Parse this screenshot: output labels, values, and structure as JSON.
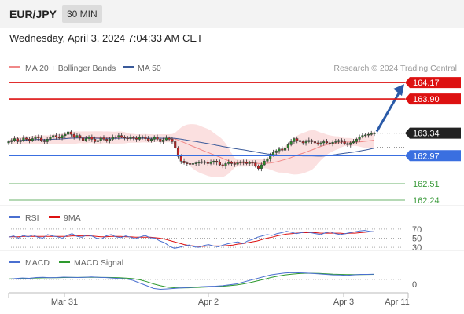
{
  "header": {
    "symbol": "EUR/JPY",
    "timeframe": "30 MIN",
    "datetime": "Wednesday, April 3, 2024 7:04:33 AM CET"
  },
  "credit": "Research © 2024 Trading Central",
  "colors": {
    "resistance": "#dd1111",
    "support_blue": "#3a6fe0",
    "support_green": "#3a9a3a",
    "current_label": "#222222",
    "arrow": "#2a5aa8",
    "bollinger_fill": "#fbe0e0",
    "ma20": "#f08888",
    "ma50": "#3a5a9a",
    "candle_up": "#2a8a2a",
    "candle_down": "#cc2222"
  },
  "chart_data": [
    {
      "type": "candlestick",
      "panel": "price",
      "legend": [
        {
          "name": "MA 20 + Bollinger Bands",
          "color": "#f08888"
        },
        {
          "name": "MA 50",
          "color": "#3a5a9a"
        }
      ],
      "ylim": [
        162.15,
        164.3
      ],
      "x_ticks": [
        "Mar 31",
        "Apr 2",
        "Apr 3",
        "Apr 11"
      ],
      "levels": [
        {
          "value": 164.17,
          "label": "164.17",
          "kind": "resistance"
        },
        {
          "value": 163.9,
          "label": "163.90",
          "kind": "resistance"
        },
        {
          "value": 163.34,
          "label": "163.34",
          "kind": "current"
        },
        {
          "value": 162.97,
          "label": "162.97",
          "kind": "pivot"
        },
        {
          "value": 162.51,
          "label": "162.51",
          "kind": "support"
        },
        {
          "value": 162.24,
          "label": "162.24",
          "kind": "support"
        }
      ],
      "close_series": [
        163.2,
        163.22,
        163.25,
        163.2,
        163.22,
        163.26,
        163.24,
        163.22,
        163.25,
        163.28,
        163.26,
        163.22,
        163.2,
        163.24,
        163.27,
        163.3,
        163.28,
        163.26,
        163.3,
        163.32,
        163.36,
        163.32,
        163.28,
        163.3,
        163.26,
        163.22,
        163.25,
        163.28,
        163.24,
        163.2,
        163.22,
        163.26,
        163.24,
        163.22,
        163.24,
        163.27,
        163.28,
        163.3,
        163.28,
        163.26,
        163.25,
        163.27,
        163.26,
        163.24,
        163.27,
        163.28,
        163.25,
        163.22,
        163.24,
        163.27,
        163.24,
        163.2,
        163.23,
        163.26,
        163.24,
        163.2,
        163.1,
        162.96,
        162.88,
        162.85,
        162.84,
        162.83,
        162.84,
        162.85,
        162.86,
        162.87,
        162.86,
        162.84,
        162.86,
        162.88,
        162.86,
        162.82,
        162.8,
        162.84,
        162.86,
        162.84,
        162.83,
        162.85,
        162.87,
        162.86,
        162.84,
        162.86,
        162.85,
        162.8,
        162.76,
        162.82,
        162.88,
        162.92,
        162.98,
        163.02,
        163.05,
        163.08,
        163.06,
        163.1,
        163.15,
        163.2,
        163.25,
        163.22,
        163.2,
        163.18,
        163.2,
        163.22,
        163.2,
        163.18,
        163.16,
        163.18,
        163.2,
        163.18,
        163.17,
        163.19,
        163.2,
        163.22,
        163.2,
        163.17,
        163.15,
        163.18,
        163.2,
        163.24,
        163.28,
        163.3,
        163.31,
        163.32,
        163.33,
        163.34
      ],
      "forecast_target": 164.17
    },
    {
      "type": "line",
      "panel": "rsi",
      "legend": [
        {
          "name": "RSI",
          "color": "#4a6fd0"
        },
        {
          "name": "9MA",
          "color": "#dd1111"
        }
      ],
      "levels": [
        {
          "value": 70,
          "label": "70"
        },
        {
          "value": 50,
          "label": "50"
        },
        {
          "value": 30,
          "label": "30"
        }
      ],
      "ylim": [
        25,
        75
      ],
      "rsi": [
        52,
        55,
        50,
        56,
        53,
        57,
        52,
        50,
        58,
        55,
        53,
        50,
        56,
        60,
        54,
        52,
        57,
        55,
        50,
        48,
        55,
        58,
        53,
        51,
        55,
        52,
        49,
        53,
        56,
        51,
        50,
        44,
        40,
        32,
        28,
        30,
        33,
        35,
        31,
        30,
        34,
        36,
        33,
        31,
        35,
        38,
        40,
        42,
        38,
        44,
        47,
        52,
        55,
        58,
        56,
        60,
        62,
        65,
        63,
        60,
        62,
        64,
        62,
        60,
        58,
        62,
        64,
        60,
        58,
        60,
        62,
        64,
        66,
        67,
        65,
        64
      ],
      "ma9": [
        53,
        53,
        53,
        54,
        54,
        54,
        54,
        54,
        54,
        54,
        54,
        54,
        54,
        55,
        55,
        55,
        55,
        55,
        54,
        53,
        53,
        54,
        54,
        54,
        53,
        53,
        52,
        52,
        52,
        52,
        51,
        50,
        48,
        45,
        42,
        39,
        36,
        34,
        33,
        32,
        32,
        33,
        33,
        33,
        33,
        34,
        35,
        37,
        38,
        40,
        42,
        44,
        47,
        50,
        52,
        55,
        57,
        59,
        60,
        61,
        62,
        62,
        62,
        62,
        61,
        61,
        61,
        61,
        61,
        60,
        61,
        61,
        62,
        63,
        64,
        64
      ]
    },
    {
      "type": "line",
      "panel": "macd",
      "legend": [
        {
          "name": "MACD",
          "color": "#4a6fd0"
        },
        {
          "name": "MACD Signal",
          "color": "#2e9a2e"
        }
      ],
      "levels": [
        {
          "value": 0,
          "label": "0"
        }
      ],
      "ylim": [
        -0.14,
        0.12
      ],
      "macd": [
        0,
        0.01,
        0.015,
        0.012,
        0.02,
        0.022,
        0.018,
        0.02,
        0.025,
        0.022,
        0.02,
        0.023,
        0.026,
        0.022,
        0.02,
        0.015,
        0.01,
        0.005,
        -0.01,
        -0.04,
        -0.07,
        -0.1,
        -0.11,
        -0.105,
        -0.1,
        -0.095,
        -0.09,
        -0.085,
        -0.08,
        -0.078,
        -0.075,
        -0.07,
        -0.06,
        -0.05,
        -0.03,
        -0.01,
        0.01,
        0.03,
        0.05,
        0.06,
        0.07,
        0.075,
        0.072,
        0.07,
        0.065,
        0.06,
        0.055,
        0.05,
        0.048,
        0.045,
        0.05,
        0.055,
        0.055,
        0.057
      ],
      "signal": [
        0.005,
        0.007,
        0.01,
        0.012,
        0.015,
        0.017,
        0.018,
        0.019,
        0.02,
        0.021,
        0.021,
        0.022,
        0.022,
        0.022,
        0.021,
        0.02,
        0.018,
        0.014,
        0.008,
        -0.005,
        -0.025,
        -0.05,
        -0.07,
        -0.085,
        -0.092,
        -0.094,
        -0.093,
        -0.09,
        -0.087,
        -0.084,
        -0.08,
        -0.076,
        -0.07,
        -0.062,
        -0.05,
        -0.035,
        -0.018,
        0,
        0.02,
        0.035,
        0.048,
        0.058,
        0.064,
        0.067,
        0.067,
        0.065,
        0.062,
        0.058,
        0.055,
        0.052,
        0.052,
        0.053,
        0.054,
        0.055
      ]
    }
  ]
}
